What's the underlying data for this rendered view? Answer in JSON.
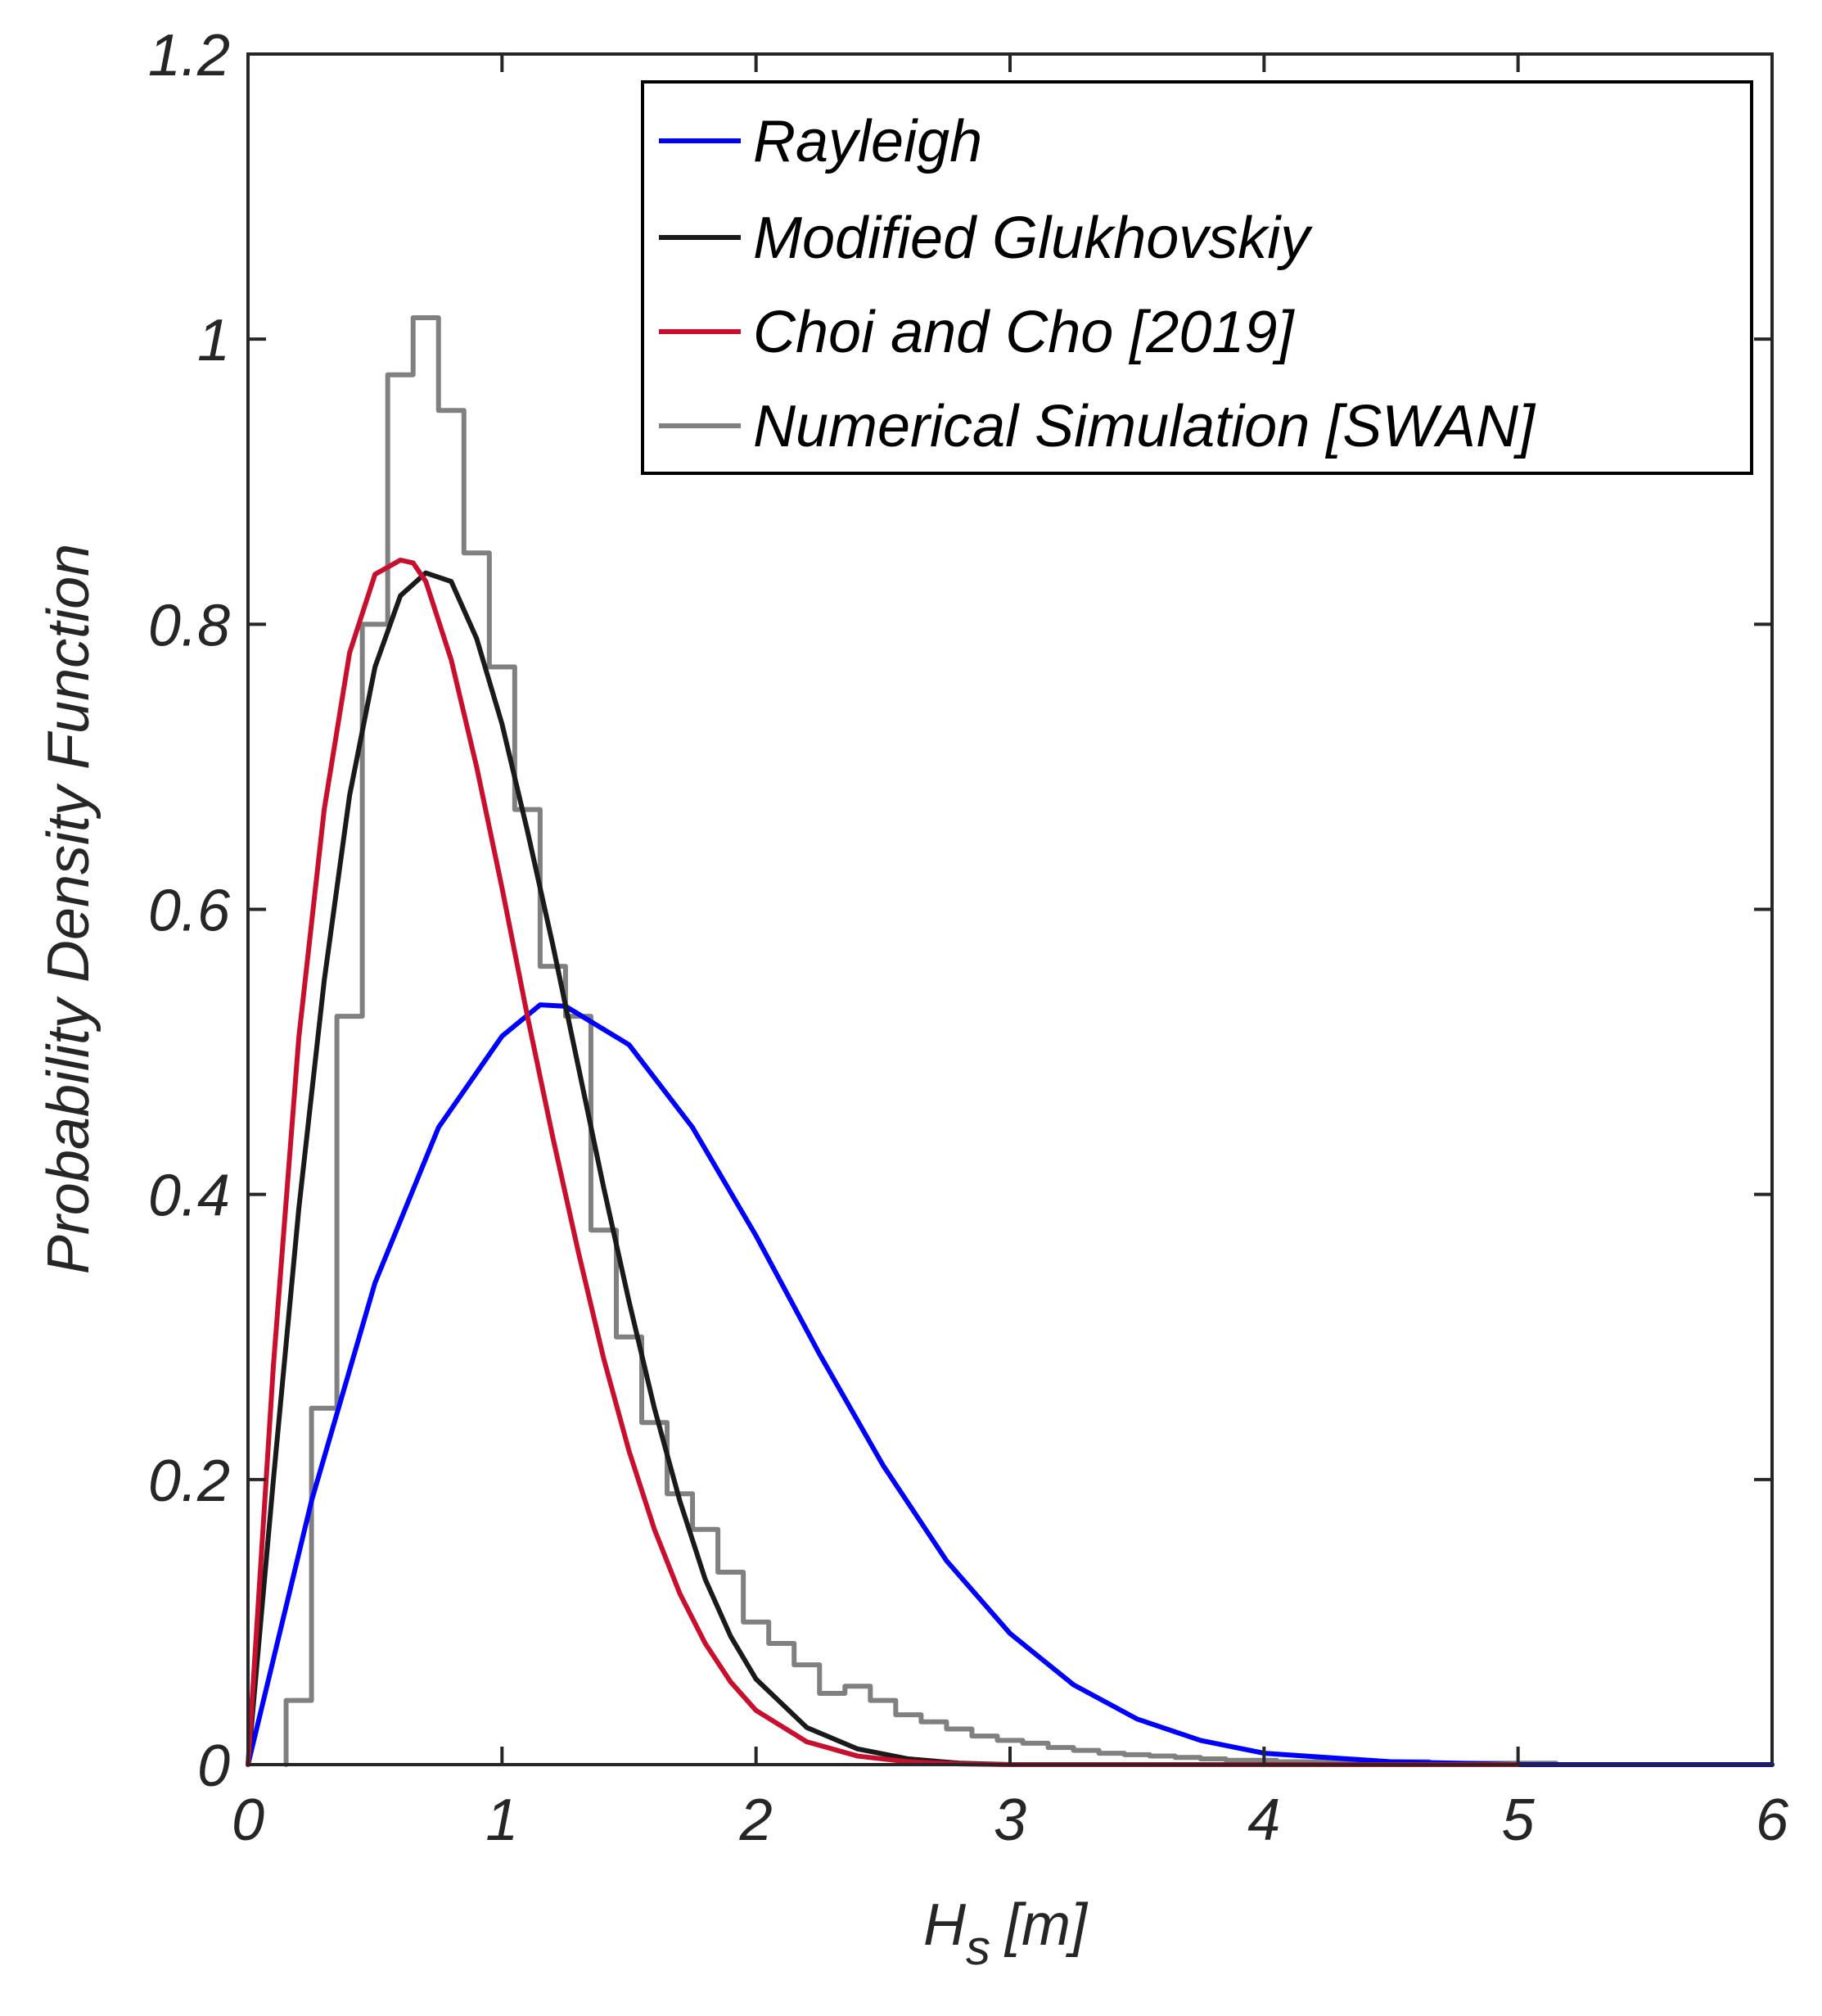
{
  "chart_data": {
    "type": "line",
    "title": "",
    "xlabel": {
      "main": "H",
      "sub": "s",
      "unit": "[m]"
    },
    "ylabel": "Probability Density Function",
    "xlim": [
      0,
      6
    ],
    "ylim": [
      0,
      1.2
    ],
    "xticks": [
      "0",
      "1",
      "2",
      "3",
      "4",
      "5",
      "6"
    ],
    "yticks": [
      "0",
      "0.2",
      "0.4",
      "0.6",
      "0.8",
      "1",
      "1.2"
    ],
    "grid": false,
    "legend_position": "top-right",
    "series": [
      {
        "name": "Rayleigh",
        "color": "#0000ff",
        "kind": "curve",
        "x": [
          0,
          0.25,
          0.5,
          0.75,
          1.0,
          1.15,
          1.25,
          1.5,
          1.75,
          2.0,
          2.25,
          2.5,
          2.75,
          3.0,
          3.25,
          3.5,
          3.75,
          4.0,
          4.5,
          5.0,
          6.0
        ],
        "y": [
          0,
          0.185,
          0.338,
          0.447,
          0.511,
          0.533,
          0.532,
          0.505,
          0.447,
          0.371,
          0.288,
          0.21,
          0.143,
          0.092,
          0.056,
          0.032,
          0.017,
          0.008,
          0.002,
          0.0,
          0.0
        ]
      },
      {
        "name": "Modified Glukhovskiy",
        "color": "#1a1a1a",
        "kind": "curve",
        "x": [
          0,
          0.1,
          0.2,
          0.3,
          0.4,
          0.5,
          0.6,
          0.7,
          0.8,
          0.9,
          1.0,
          1.1,
          1.2,
          1.3,
          1.4,
          1.5,
          1.6,
          1.7,
          1.8,
          1.9,
          2.0,
          2.2,
          2.4,
          2.6,
          2.8,
          3.0,
          3.5,
          4.0,
          5.0
        ],
        "y": [
          0,
          0.2,
          0.39,
          0.55,
          0.68,
          0.77,
          0.82,
          0.836,
          0.83,
          0.79,
          0.73,
          0.655,
          0.575,
          0.49,
          0.405,
          0.325,
          0.25,
          0.185,
          0.13,
          0.09,
          0.06,
          0.026,
          0.011,
          0.004,
          0.001,
          0.0,
          0.0,
          0.0,
          0.0
        ]
      },
      {
        "name": "Choi and Cho [2019]",
        "color": "#c8102e",
        "kind": "curve",
        "x": [
          0,
          0.1,
          0.2,
          0.3,
          0.4,
          0.5,
          0.6,
          0.65,
          0.7,
          0.8,
          0.9,
          1.0,
          1.1,
          1.2,
          1.3,
          1.4,
          1.5,
          1.6,
          1.7,
          1.8,
          1.9,
          2.0,
          2.2,
          2.4,
          2.6,
          2.8,
          3.0,
          3.5,
          4.0,
          5.0
        ],
        "y": [
          0,
          0.28,
          0.51,
          0.67,
          0.78,
          0.835,
          0.845,
          0.843,
          0.83,
          0.775,
          0.7,
          0.615,
          0.525,
          0.44,
          0.36,
          0.285,
          0.22,
          0.165,
          0.12,
          0.085,
          0.058,
          0.038,
          0.016,
          0.006,
          0.002,
          0.0005,
          0.0,
          0.0,
          0.0,
          0.0
        ]
      },
      {
        "name": "Numerical Simulation [SWAN]",
        "color": "#808080",
        "kind": "stairs",
        "bin_width": 0.1,
        "x_start": 0.15,
        "x_end": 6.0,
        "values": [
          0.045,
          0.25,
          0.525,
          0.8,
          0.975,
          1.015,
          0.95,
          0.85,
          0.77,
          0.67,
          0.56,
          0.525,
          0.375,
          0.3,
          0.24,
          0.19,
          0.165,
          0.135,
          0.1,
          0.085,
          0.07,
          0.05,
          0.055,
          0.045,
          0.035,
          0.03,
          0.025,
          0.02,
          0.017,
          0.015,
          0.012,
          0.01,
          0.008,
          0.007,
          0.006,
          0.005,
          0.004,
          0.003,
          0.003,
          0.002,
          0.002,
          0.002,
          0.002,
          0.002,
          0.002,
          0.001,
          0.001,
          0.001,
          0.001,
          0.001,
          0.0,
          0.0,
          0.0,
          0.0,
          0.0,
          0.0,
          0.0,
          0.0,
          0.0
        ]
      }
    ]
  }
}
